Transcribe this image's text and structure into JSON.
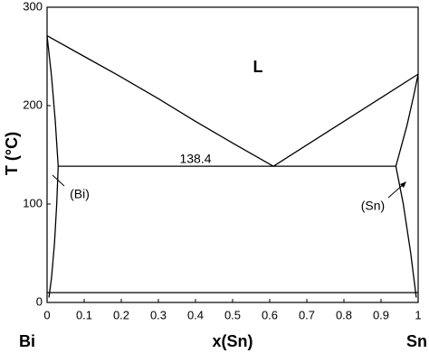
{
  "chart_data": {
    "type": "line",
    "xlabel": "x(Sn)",
    "ylabel": "T (°C)",
    "end_labels": [
      "Bi",
      "Sn"
    ],
    "annotations": [
      "L",
      "138.4",
      "(Bi)",
      "(Sn)"
    ],
    "xlim": [
      0,
      1
    ],
    "ylim": [
      0,
      300
    ],
    "xticks": [
      0,
      0.1,
      0.2,
      0.3,
      0.4,
      0.5,
      0.6,
      0.7,
      0.8,
      0.9,
      1
    ],
    "yticks": [
      0,
      100,
      200,
      300
    ],
    "color": "#000000",
    "series": [
      {
        "x": [
          0,
          0.1,
          0.2,
          0.3,
          0.4,
          0.5,
          0.61
        ],
        "values": [
          271,
          250,
          229,
          207,
          184,
          162,
          138.4
        ]
      },
      {
        "x": [
          0.61,
          0.7,
          0.8,
          0.9,
          1
        ],
        "values": [
          138.4,
          160,
          184,
          208,
          232
        ]
      },
      {
        "x": [
          0.03,
          0.94
        ],
        "values": [
          138.4,
          138.4
        ]
      },
      {
        "x": [
          0,
          0.012,
          0.022,
          0.03
        ],
        "values": [
          271,
          230,
          185,
          138.4
        ]
      },
      {
        "x": [
          0.03,
          0.026,
          0.02,
          0.012,
          0.005
        ],
        "values": [
          138.4,
          100,
          60,
          25,
          5
        ]
      },
      {
        "x": [
          0.94,
          0.96,
          0.98,
          0.99,
          0.995
        ],
        "values": [
          138.4,
          100,
          50,
          20,
          5
        ]
      },
      {
        "x": [
          0.94,
          0.97,
          0.988,
          1
        ],
        "values": [
          138.4,
          180,
          210,
          232
        ]
      },
      {
        "x": [
          0,
          1
        ],
        "values": [
          10,
          10
        ]
      }
    ]
  }
}
